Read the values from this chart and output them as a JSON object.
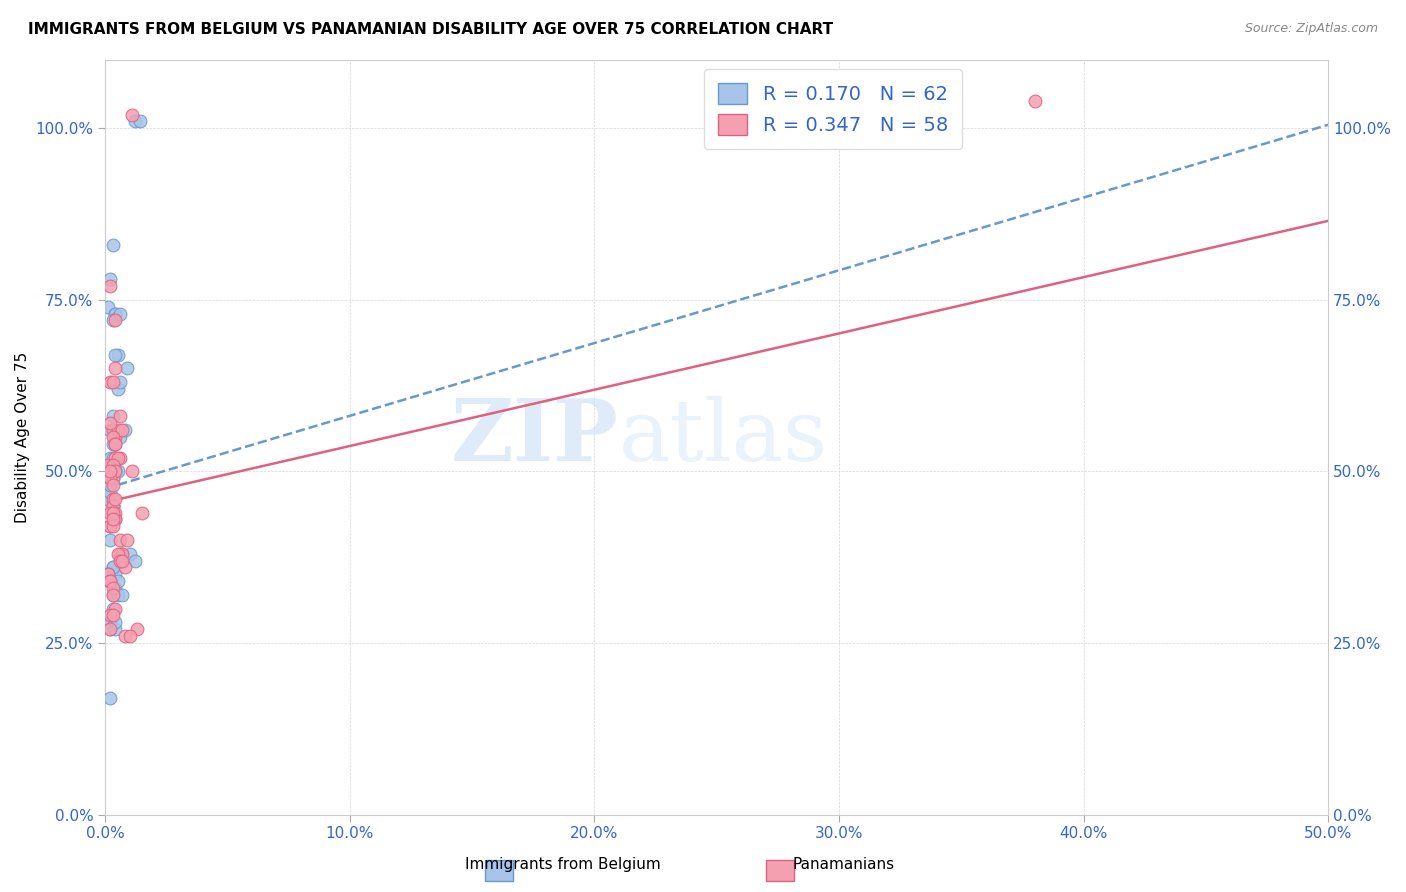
{
  "title": "IMMIGRANTS FROM BELGIUM VS PANAMANIAN DISABILITY AGE OVER 75 CORRELATION CHART",
  "source": "Source: ZipAtlas.com",
  "ylabel": "Disability Age Over 75",
  "legend_label1": "Immigrants from Belgium",
  "legend_label2": "Panamanians",
  "R1": 0.17,
  "N1": 62,
  "R2": 0.347,
  "N2": 58,
  "xmin": 0.0,
  "xmax": 0.5,
  "ymin": 0.0,
  "ymax": 1.1,
  "color1": "#a8c4e8",
  "color2": "#f4a0b0",
  "trendline1_color": "#6699cc",
  "trendline2_color": "#e06080",
  "trendline1_x0": 0.0,
  "trendline1_y0": 0.475,
  "trendline1_x1": 0.5,
  "trendline1_y1": 1.005,
  "trendline2_x0": 0.0,
  "trendline2_y0": 0.455,
  "trendline2_x1": 0.5,
  "trendline2_y1": 0.865,
  "scatter1_x": [
    0.005,
    0.012,
    0.014,
    0.003,
    0.004,
    0.001,
    0.002,
    0.003,
    0.002,
    0.003,
    0.004,
    0.005,
    0.002,
    0.004,
    0.003,
    0.001,
    0.002,
    0.002,
    0.002,
    0.003,
    0.003,
    0.004,
    0.003,
    0.002,
    0.002,
    0.003,
    0.002,
    0.002,
    0.005,
    0.006,
    0.006,
    0.008,
    0.007,
    0.006,
    0.01,
    0.012,
    0.001,
    0.002,
    0.003,
    0.004,
    0.002,
    0.004,
    0.005,
    0.003,
    0.002,
    0.002,
    0.004,
    0.004,
    0.003,
    0.003,
    0.001,
    0.002,
    0.005,
    0.007,
    0.002,
    0.009,
    0.002,
    0.001,
    0.004,
    0.004,
    0.003,
    0.006
  ],
  "scatter1_y": [
    0.67,
    1.01,
    1.01,
    0.83,
    0.67,
    0.5,
    0.52,
    0.54,
    0.56,
    0.58,
    0.52,
    0.5,
    0.48,
    0.5,
    0.49,
    0.46,
    0.48,
    0.5,
    0.47,
    0.45,
    0.45,
    0.43,
    0.44,
    0.48,
    0.5,
    0.52,
    0.42,
    0.4,
    0.62,
    0.55,
    0.63,
    0.56,
    0.38,
    0.37,
    0.38,
    0.37,
    0.35,
    0.34,
    0.32,
    0.35,
    0.34,
    0.33,
    0.32,
    0.3,
    0.28,
    0.27,
    0.27,
    0.28,
    0.36,
    0.36,
    0.35,
    0.34,
    0.34,
    0.32,
    0.17,
    0.65,
    0.78,
    0.74,
    0.73,
    0.73,
    0.72,
    0.73
  ],
  "scatter2_x": [
    0.002,
    0.002,
    0.003,
    0.011,
    0.003,
    0.004,
    0.006,
    0.001,
    0.005,
    0.007,
    0.006,
    0.002,
    0.003,
    0.004,
    0.004,
    0.004,
    0.005,
    0.003,
    0.003,
    0.004,
    0.002,
    0.002,
    0.003,
    0.003,
    0.003,
    0.004,
    0.004,
    0.004,
    0.002,
    0.002,
    0.003,
    0.003,
    0.006,
    0.008,
    0.006,
    0.007,
    0.009,
    0.001,
    0.002,
    0.002,
    0.003,
    0.003,
    0.004,
    0.002,
    0.005,
    0.006,
    0.004,
    0.004,
    0.007,
    0.013,
    0.002,
    0.003,
    0.008,
    0.01,
    0.011,
    0.015,
    0.003,
    0.38
  ],
  "scatter2_y": [
    0.77,
    0.63,
    0.63,
    1.02,
    0.56,
    0.55,
    0.52,
    0.51,
    0.56,
    0.56,
    0.58,
    0.57,
    0.55,
    0.54,
    0.52,
    0.54,
    0.52,
    0.51,
    0.49,
    0.5,
    0.49,
    0.5,
    0.48,
    0.46,
    0.45,
    0.44,
    0.43,
    0.46,
    0.42,
    0.44,
    0.44,
    0.42,
    0.4,
    0.36,
    0.38,
    0.38,
    0.4,
    0.35,
    0.34,
    0.34,
    0.33,
    0.32,
    0.3,
    0.29,
    0.38,
    0.37,
    0.65,
    0.72,
    0.37,
    0.27,
    0.27,
    0.29,
    0.26,
    0.26,
    0.5,
    0.44,
    0.43,
    1.04
  ],
  "ytick_vals": [
    0.0,
    0.25,
    0.5,
    0.75,
    1.0
  ],
  "ytick_labels": [
    "0.0%",
    "25.0%",
    "50.0%",
    "75.0%",
    "100.0%"
  ],
  "xtick_vals": [
    0.0,
    0.1,
    0.2,
    0.3,
    0.4,
    0.5
  ],
  "xtick_labels": [
    "0.0%",
    "10.0%",
    "20.0%",
    "30.0%",
    "40.0%",
    "50.0%"
  ]
}
